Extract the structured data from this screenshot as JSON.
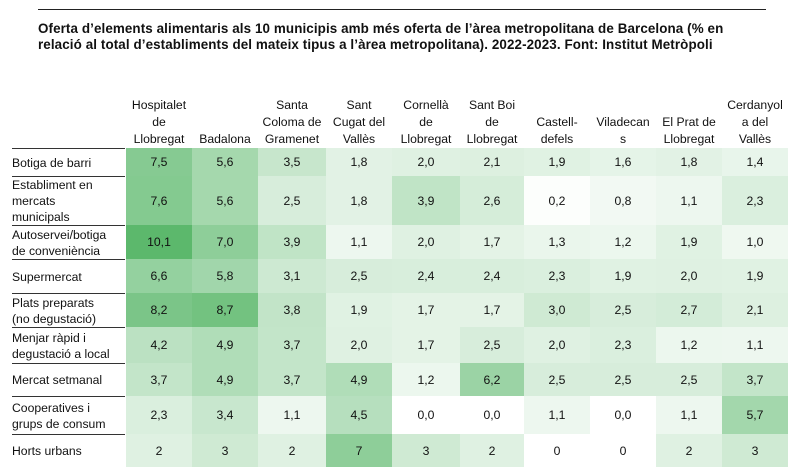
{
  "title": "Oferta d’elements alimentaris als 10 municipis amb més oferta de l’àrea metropolitana de Barcelona (% en relació al total d’establiments del mateix tipus a l’àrea metropolitana). 2022-2023. Font: Institut Metròpoli",
  "colors": {
    "text": "#111111",
    "scale_low": "#ffffff",
    "scale_high": "#5cb86c"
  },
  "chart_data": {
    "type": "heatmap",
    "title": "Oferta d’elements alimentaris als 10 municipis amb més oferta de l’àrea metropolitana de Barcelona (% en relació al total d’establiments del mateix tipus a l’àrea metropolitana). 2022-2023. Font: Institut Metròpoli",
    "columns": [
      [
        "Hospitalet",
        "de",
        "Llobregat"
      ],
      [
        "Badalona"
      ],
      [
        "Santa",
        "Coloma de",
        "Gramenet"
      ],
      [
        "Sant",
        "Cugat del",
        "Vallès"
      ],
      [
        "Cornellà",
        "de",
        "Llobregat"
      ],
      [
        "Sant Boi",
        "de",
        "Llobregat"
      ],
      [
        "Castell-",
        "defels"
      ],
      [
        "Viladecan",
        "s"
      ],
      [
        "El Prat de",
        "Llobregat"
      ],
      [
        "Cerdanyol",
        "a del",
        "Vallès"
      ]
    ],
    "rows": [
      {
        "label": [
          "Botiga de barri"
        ],
        "values": [
          "7,5",
          "5,6",
          "3,5",
          "1,8",
          "2,0",
          "2,1",
          "1,9",
          "1,6",
          "1,8",
          "1,4"
        ]
      },
      {
        "label": [
          "Establiment en",
          "mercats",
          "municipals"
        ],
        "values": [
          "7,6",
          "5,6",
          "2,5",
          "1,8",
          "3,9",
          "2,6",
          "0,2",
          "0,8",
          "1,1",
          "2,3"
        ]
      },
      {
        "label": [
          "Autoservei/botiga",
          "de conveniència"
        ],
        "values": [
          "10,1",
          "7,0",
          "3,9",
          "1,1",
          "2,0",
          "1,7",
          "1,3",
          "1,2",
          "1,9",
          "1,0"
        ]
      },
      {
        "label": [
          "Supermercat"
        ],
        "values": [
          "6,6",
          "5,8",
          "3,1",
          "2,5",
          "2,4",
          "2,4",
          "2,3",
          "1,9",
          "2,0",
          "1,9"
        ]
      },
      {
        "label": [
          "Plats preparats",
          "(no degustació)"
        ],
        "values": [
          "8,2",
          "8,7",
          "3,8",
          "1,9",
          "1,7",
          "1,7",
          "3,0",
          "2,5",
          "2,7",
          "2,1"
        ]
      },
      {
        "label": [
          "Menjar ràpid i",
          "degustació a local"
        ],
        "values": [
          "4,2",
          "4,9",
          "3,7",
          "2,0",
          "1,7",
          "2,5",
          "2,0",
          "2,3",
          "1,2",
          "1,1"
        ]
      },
      {
        "label": [
          "Mercat setmanal"
        ],
        "values": [
          "3,7",
          "4,9",
          "3,7",
          "4,9",
          "1,2",
          "6,2",
          "2,5",
          "2,5",
          "2,5",
          "3,7"
        ]
      },
      {
        "label": [
          "Cooperatives i",
          "grups de consum"
        ],
        "values": [
          "2,3",
          "3,4",
          "1,1",
          "4,5",
          "0,0",
          "0,0",
          "1,1",
          "0,0",
          "1,1",
          "5,7"
        ]
      },
      {
        "label": [
          "Horts urbans"
        ],
        "values": [
          "2",
          "3",
          "2",
          "7",
          "3",
          "2",
          "0",
          "0",
          "2",
          "3"
        ]
      }
    ],
    "color_scale": {
      "min": 0,
      "max": 10.1
    }
  }
}
